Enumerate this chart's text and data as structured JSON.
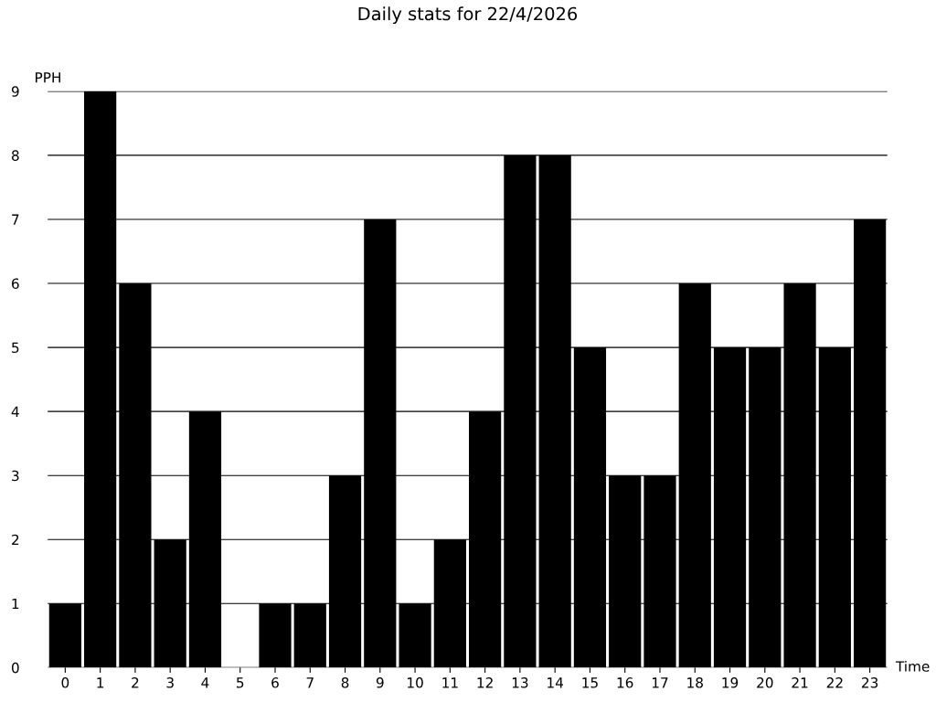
{
  "chart_data": {
    "type": "bar",
    "title": "Daily stats for 22/4/2026",
    "xlabel": "Time",
    "ylabel": "PPH",
    "categories": [
      "0",
      "1",
      "2",
      "3",
      "4",
      "5",
      "6",
      "7",
      "8",
      "9",
      "10",
      "11",
      "12",
      "13",
      "14",
      "15",
      "16",
      "17",
      "18",
      "19",
      "20",
      "21",
      "22",
      "23"
    ],
    "values": [
      1,
      9,
      6,
      2,
      4,
      0,
      1,
      1,
      3,
      7,
      1,
      2,
      4,
      8,
      8,
      5,
      3,
      3,
      6,
      5,
      5,
      6,
      5,
      7
    ],
    "color": "#000000",
    "ylim": [
      0,
      9
    ],
    "yticks": [
      0,
      1,
      2,
      3,
      4,
      5,
      6,
      7,
      8,
      9
    ],
    "grid": "y",
    "legend": false
  }
}
